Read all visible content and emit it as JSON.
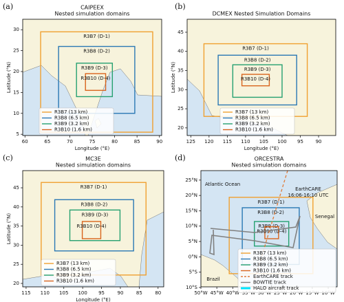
{
  "panels": [
    {
      "label": "(a)",
      "title": "CAIPEEX",
      "subtitle": "Nested simulation domains",
      "xlabel": "Longitude (°E)",
      "ylabel": "Latitude (°N)",
      "xlim": [
        59.5,
        90.5
      ],
      "ylim": [
        4.7,
        32.5
      ],
      "xticks": [
        60,
        65,
        70,
        75,
        80,
        85,
        90
      ],
      "yticks": [
        5,
        10,
        15,
        20,
        25,
        30
      ],
      "domains": [
        {
          "label": "R3B7 (D-1)",
          "legend": "R3B7 (13 km)",
          "color": "#f0a030",
          "lon": [
            63.5,
            88.5
          ],
          "lat": [
            5.5,
            29.5
          ]
        },
        {
          "label": "R3B8 (D-2)",
          "legend": "R3B8 (6.5 km)",
          "color": "#2a78b4",
          "lon": [
            67.5,
            84.5
          ],
          "lat": [
            10,
            26
          ]
        },
        {
          "label": "R3B9 (D-3)",
          "legend": "R3B9 (3.2 km)",
          "color": "#25a070",
          "lon": [
            71.5,
            79.5
          ],
          "lat": [
            14,
            22
          ]
        },
        {
          "label": "R3B10 (D-4)",
          "legend": "R3B10 (1.6 km)",
          "color": "#d9641c",
          "lon": [
            73.5,
            78
          ],
          "lat": [
            15.5,
            19.5
          ]
        }
      ]
    },
    {
      "label": "(b)",
      "title": "DCMEX Nested Simulation Domains",
      "xlabel": "Longitude (°E)",
      "ylabel": "Latitude (°N)",
      "xlim": [
        126,
        85.3
      ],
      "ylim": [
        18,
        48.4
      ],
      "xticks": [
        125,
        120,
        115,
        110,
        105,
        100,
        95,
        90
      ],
      "yticks": [
        20,
        25,
        30,
        35,
        40,
        45
      ],
      "domains": [
        {
          "label": "R3B7 (D-1)",
          "legend": "R3B7 (13 km)",
          "color": "#f0a030",
          "lon": [
            121.4,
            93.1
          ],
          "lat": [
            23,
            42
          ]
        },
        {
          "label": "R3B8 (D-2)",
          "legend": "R3B8 (6.5 km)",
          "color": "#2a78b4",
          "lon": [
            117.5,
            96
          ],
          "lat": [
            26,
            39
          ]
        },
        {
          "label": "R3B9 (D-3)",
          "legend": "R3B9 (3.2 km)",
          "color": "#25a070",
          "lon": [
            113.5,
            100
          ],
          "lat": [
            28,
            36.5
          ]
        },
        {
          "label": "R3B10 (D-4)",
          "legend": "R3B10 (1.6 km)",
          "color": "#d9641c",
          "lon": [
            111,
            103.5
          ],
          "lat": [
            31,
            34
          ]
        }
      ]
    },
    {
      "label": "(c)",
      "title": "MC3E",
      "subtitle": "Nested simulation domains",
      "xlabel": "Longitude (°E)",
      "ylabel": "Latitude (°N)",
      "xlim": [
        115.9,
        78.5
      ],
      "ylim": [
        19.1,
        49.5
      ],
      "xticks": [
        115,
        110,
        105,
        100,
        95,
        90,
        85,
        80
      ],
      "yticks": [
        20,
        25,
        30,
        35,
        40,
        45
      ],
      "domains": [
        {
          "label": "R3B7 (D-1)",
          "legend": "R3B7 (13 km)",
          "color": "#f0a030",
          "lon": [
            111,
            83.2
          ],
          "lat": [
            22.2,
            46.4
          ]
        },
        {
          "label": "R3B8 (D-2)",
          "legend": "R3B8 (6.5 km)",
          "color": "#2a78b4",
          "lon": [
            107.4,
            86.5
          ],
          "lat": [
            28.5,
            41.9
          ]
        },
        {
          "label": "R3B9 (D-3)",
          "legend": "R3B9 (3.2 km)",
          "color": "#25a070",
          "lon": [
            103.4,
            90.1
          ],
          "lat": [
            31.2,
            39.2
          ]
        },
        {
          "label": "R3B10 (D-4)",
          "legend": "R3B10 (1.6 km)",
          "color": "#d9641c",
          "lon": [
            100.1,
            95.2
          ],
          "lat": [
            31.7,
            36.2
          ]
        }
      ]
    },
    {
      "label": "(d)",
      "title": "ORCESTRA",
      "subtitle": "Nested simulation domains",
      "xlim": [
        -50,
        -7.2
      ],
      "ylim": [
        -9.8,
        28.1
      ],
      "xticks": [
        {
          "value": -50,
          "label": "50°W"
        },
        {
          "value": -45,
          "label": "45°W"
        },
        {
          "value": -40,
          "label": "40°W"
        },
        {
          "value": -35,
          "label": "35°W"
        },
        {
          "value": -30,
          "label": "30°W"
        },
        {
          "value": -25,
          "label": "25°W"
        },
        {
          "value": -20,
          "label": "20°W"
        },
        {
          "value": -15,
          "label": "15°W"
        },
        {
          "value": -10,
          "label": "10°W"
        }
      ],
      "yticks": [
        {
          "value": -10,
          "label": "10°S"
        },
        {
          "value": -5,
          "label": "5°S"
        },
        {
          "value": 0,
          "label": "0°N"
        },
        {
          "value": 5,
          "label": "5°N"
        },
        {
          "value": 10,
          "label": "10°N"
        },
        {
          "value": 15,
          "label": "15°N"
        },
        {
          "value": 20,
          "label": "20°N"
        },
        {
          "value": 25,
          "label": "25°N"
        }
      ],
      "domains": [
        {
          "label": "R3B7 (D-1)",
          "legend": "R3B7 (13 km)",
          "color": "#f0a030",
          "lon": [
            -41.1,
            -14.8
          ],
          "lat": [
            -5.5,
            19.4
          ]
        },
        {
          "label": "R3B8 (D-2)",
          "legend": "R3B8 (6.5 km)",
          "color": "#2a78b4",
          "lon": [
            -37,
            -19.1
          ],
          "lat": [
            -2.5,
            16
          ]
        },
        {
          "label": "R3B9 (D-3)",
          "legend": "R3B9 (3.2 km)",
          "color": "#25a070",
          "lon": [
            -33.2,
            -22.4
          ],
          "lat": [
            3.5,
            11.5
          ]
        },
        {
          "label": "R3B10 (D-4)",
          "legend": "R3B10 (1.6 km)",
          "color": "#d9641c",
          "lon": [
            -29.9,
            -25.6
          ],
          "lat": [
            5.9,
            9.8
          ]
        }
      ],
      "tracks": [
        {
          "name": "EarthCARE track",
          "color": "#e07b39",
          "style": "dashed"
        },
        {
          "name": "BOWTIE track",
          "color": "#808080",
          "style": "solid"
        },
        {
          "name": "HALO aircraft track",
          "color": "#00e5ff",
          "style": "thick"
        }
      ],
      "annotations": [
        {
          "text": "Atlantic Ocean",
          "color": "#111111"
        },
        {
          "text": "EarthCARE",
          "color": "#e07b39"
        },
        {
          "text": "16:06-16:10 UTC",
          "color": "#e07b39"
        },
        {
          "text": "Senegal",
          "color": "#1f3fbf"
        },
        {
          "text": "Brazil",
          "color": "#1f3fbf"
        }
      ]
    }
  ]
}
